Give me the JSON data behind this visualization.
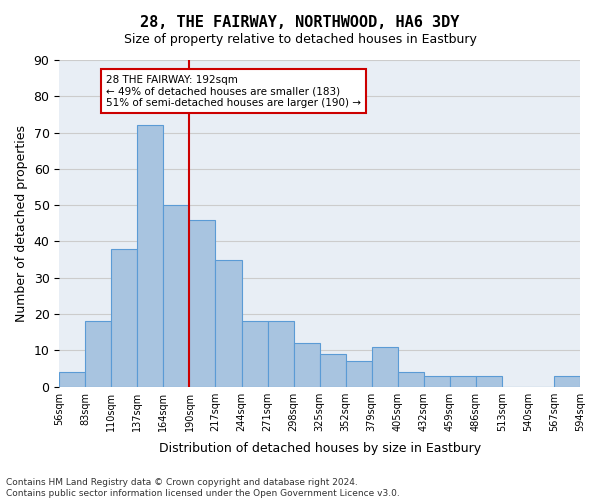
{
  "title": "28, THE FAIRWAY, NORTHWOOD, HA6 3DY",
  "subtitle": "Size of property relative to detached houses in Eastbury",
  "xlabel": "Distribution of detached houses by size in Eastbury",
  "ylabel": "Number of detached properties",
  "bar_labels": [
    "56sqm",
    "83sqm",
    "110sqm",
    "137sqm",
    "164sqm",
    "190sqm",
    "217sqm",
    "244sqm",
    "271sqm",
    "298sqm",
    "325sqm",
    "352sqm",
    "379sqm",
    "405sqm",
    "432sqm",
    "459sqm",
    "486sqm",
    "513sqm",
    "540sqm",
    "567sqm",
    "594sqm"
  ],
  "bar_values": [
    4,
    18,
    38,
    72,
    50,
    46,
    35,
    18,
    18,
    12,
    9,
    7,
    11,
    4,
    3,
    3,
    3,
    0,
    0,
    3
  ],
  "bar_color": "#a8c4e0",
  "bar_edge_color": "#5b9bd5",
  "vline_label_idx": 5,
  "vline_color": "#cc0000",
  "annotation_text": "28 THE FAIRWAY: 192sqm\n← 49% of detached houses are smaller (183)\n51% of semi-detached houses are larger (190) →",
  "annotation_box_color": "#ffffff",
  "annotation_box_edge": "#cc0000",
  "ylim": [
    0,
    90
  ],
  "yticks": [
    0,
    10,
    20,
    30,
    40,
    50,
    60,
    70,
    80,
    90
  ],
  "grid_color": "#cccccc",
  "bg_color": "#e8eef5",
  "footer": "Contains HM Land Registry data © Crown copyright and database right 2024.\nContains public sector information licensed under the Open Government Licence v3.0."
}
